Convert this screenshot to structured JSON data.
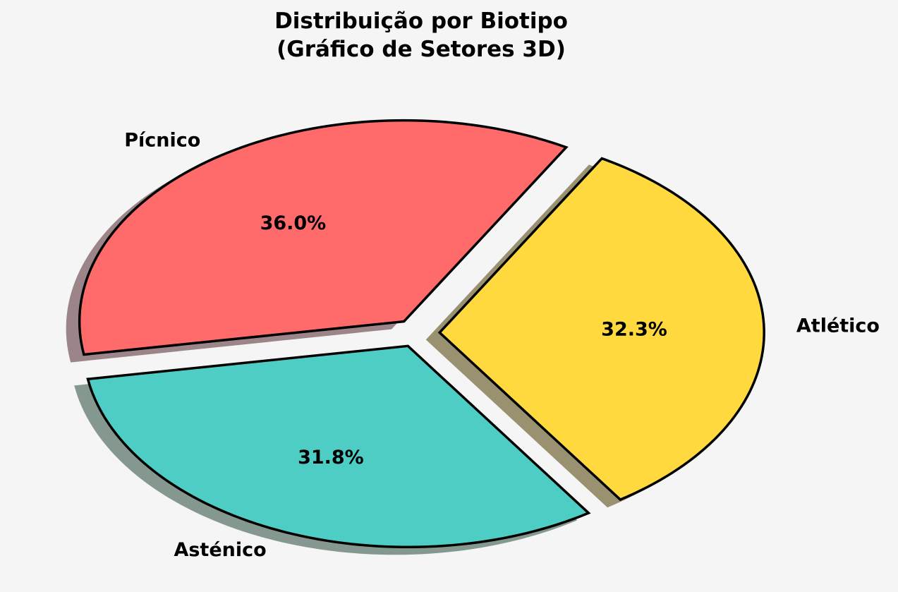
{
  "background": "#f5f5f5",
  "title": {
    "line1": "Distribuição por Biotipo",
    "line2": "(Gráfico de Setores 3D)"
  },
  "chart_data": {
    "type": "pie",
    "title": "Distribuição por Biotipo (Gráfico de Setores 3D)",
    "labels": [
      "Pícnico",
      "Asténico",
      "Atlético"
    ],
    "values": [
      36.0,
      31.8,
      32.3
    ],
    "pct_labels": [
      "36.0%",
      "31.8%",
      "32.3%"
    ],
    "colors": [
      "#ff6b6b",
      "#4ecdc4",
      "#ffd93d"
    ],
    "shadow_colors": [
      "#9c8589",
      "#85988f",
      "#9a9170"
    ],
    "outline_color": "#000000",
    "text_color": "#000000",
    "start_angle": 60,
    "direction": "counterclockwise",
    "explode": [
      0.07,
      0.07,
      0.07
    ],
    "style_3d_shadow": true,
    "legend": "none"
  }
}
